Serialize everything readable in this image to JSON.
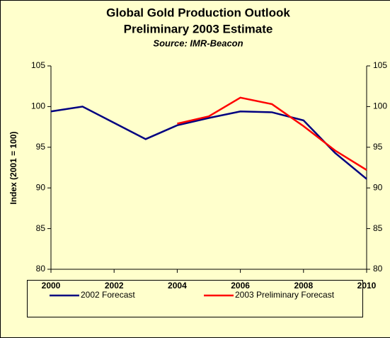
{
  "chart_data": {
    "type": "line",
    "title": "Global Gold Production Outlook",
    "subtitle": "Preliminary 2003 Estimate",
    "source": "Source:  IMR-Beacon",
    "y_label": "Index (2001 = 100)",
    "x": [
      2000,
      2001,
      2002,
      2003,
      2004,
      2005,
      2006,
      2007,
      2008,
      2009,
      2010
    ],
    "xlim": [
      2000,
      2010
    ],
    "xticks": [
      2000,
      2002,
      2004,
      2006,
      2008,
      2010
    ],
    "ylim": [
      80,
      105
    ],
    "yticks": [
      80,
      85,
      90,
      95,
      100,
      105
    ],
    "y2lim": [
      80,
      105
    ],
    "y2ticks": [
      80,
      85,
      90,
      95,
      100,
      105
    ],
    "series": [
      {
        "name": "2002 Forecast",
        "color": "#000080",
        "values": [
          99.4,
          100.0,
          98.0,
          96.0,
          97.7,
          98.6,
          99.4,
          99.3,
          98.3,
          94.3,
          91.1
        ]
      },
      {
        "name": "2003 Preliminary Forecast",
        "color": "#ff0000",
        "values": [
          null,
          null,
          null,
          null,
          97.9,
          98.8,
          101.1,
          100.3,
          97.6,
          94.6,
          92.2
        ]
      }
    ],
    "grid": false,
    "legend": "bottom"
  }
}
